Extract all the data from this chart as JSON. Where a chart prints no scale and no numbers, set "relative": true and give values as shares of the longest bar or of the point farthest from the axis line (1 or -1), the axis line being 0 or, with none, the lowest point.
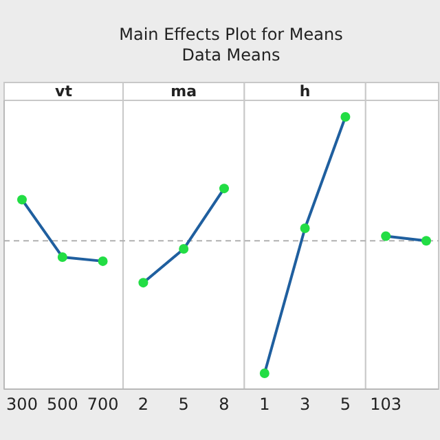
{
  "chart_data": {
    "type": "line",
    "title": "Main Effects Plot for Means",
    "subtitle": "Data Means",
    "relative": true,
    "categories": [
      "300",
      "500",
      "700",
      "2",
      "5",
      "8",
      "1",
      "3",
      "5",
      "103",
      null
    ],
    "annotations": [
      "vt",
      "ma",
      "h"
    ],
    "series": [
      {
        "color": "#1f5f9f",
        "values": [
          0.696,
          0.485,
          0.47,
          null,
          null,
          null,
          null,
          null,
          null,
          null,
          null
        ]
      },
      {
        "color": "#1f5f9f",
        "values": [
          null,
          null,
          null,
          0.391,
          0.515,
          0.737,
          null,
          null,
          null,
          null,
          null
        ]
      },
      {
        "color": "#1f5f9f",
        "values": [
          null,
          null,
          null,
          null,
          null,
          null,
          0.058,
          0.591,
          1,
          null,
          null
        ]
      },
      {
        "color": "#1f5f9f",
        "values": [
          null,
          null,
          null,
          null,
          null,
          null,
          null,
          null,
          null,
          0.562,
          0.545
        ]
      },
      {
        "type": "scatter",
        "color": "#22dd44",
        "marker": "circle",
        "values": [
          0.696,
          0.485,
          0.47,
          0.391,
          0.515,
          0.737,
          0.058,
          0.591,
          1,
          0.562,
          0.545
        ]
      }
    ],
    "ref_lines": [
      {
        "axis": "y",
        "value": 0.545,
        "color": "#b0b0b0",
        "line_style": "dashed"
      }
    ]
  }
}
